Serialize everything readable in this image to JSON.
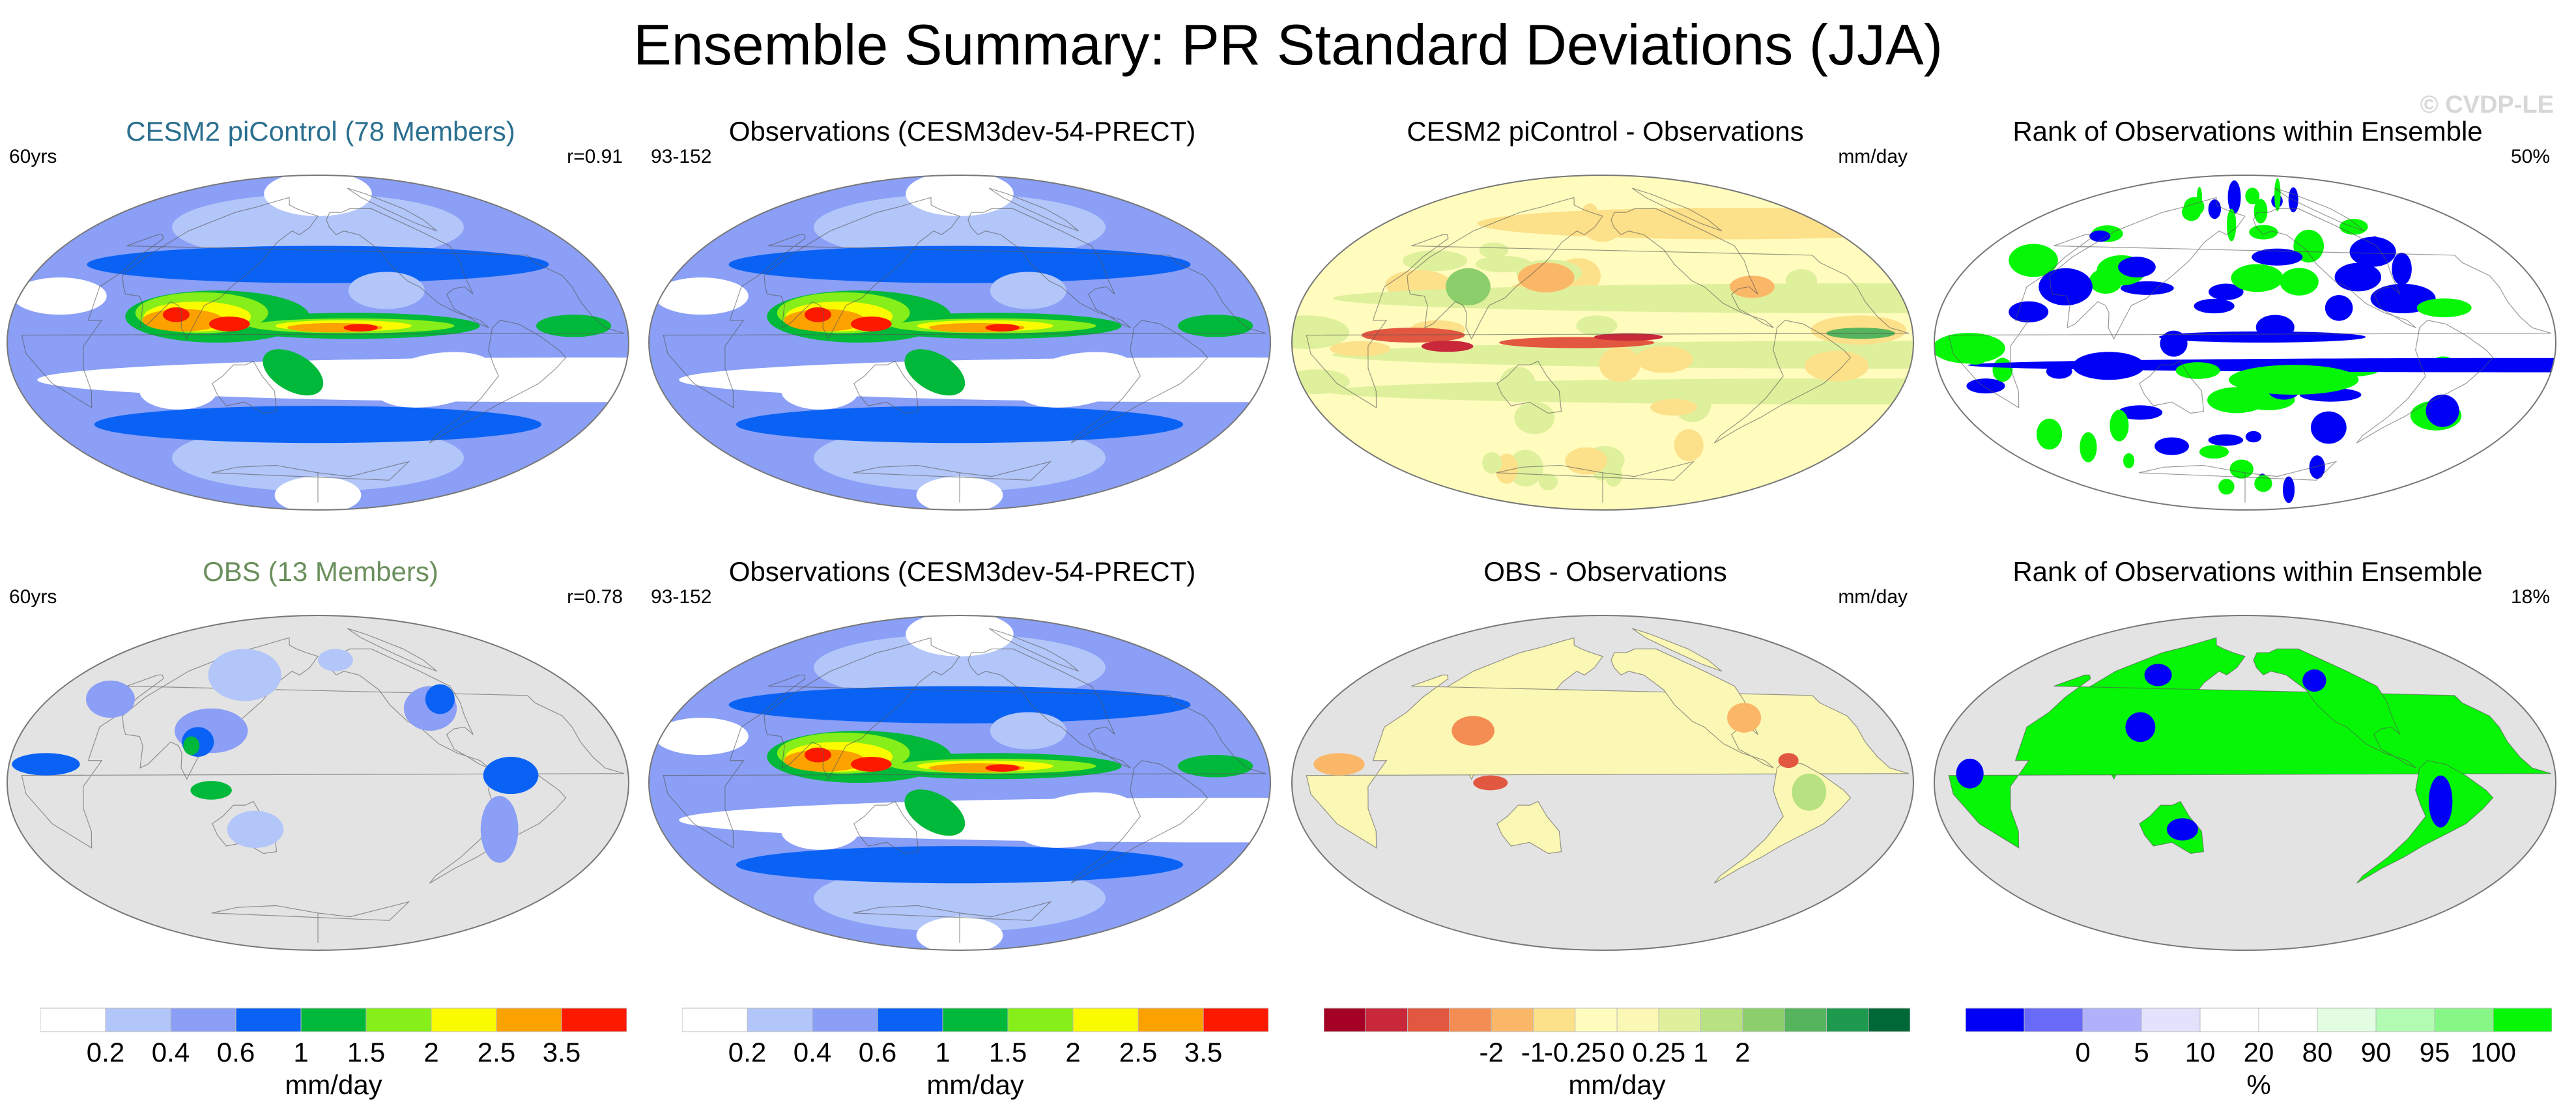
{
  "page": {
    "title": "Ensemble Summary: PR Standard Deviations (JJA)",
    "watermark": "© CVDP-LE"
  },
  "colors": {
    "ocean_gray": "#e3e3e3",
    "land_gray": "#e3e3e3",
    "title_blue": "#2a6f8f",
    "title_green": "#6a8f5c"
  },
  "panels": [
    {
      "id": "p1",
      "title": "CESM2 piControl (78 Members)",
      "title_color": "#2a6f8f",
      "left": "60yrs",
      "right": "r=0.91",
      "style": "pr"
    },
    {
      "id": "p2",
      "title": "Observations (CESM3dev-54-PRECT)",
      "title_color": "#000000",
      "left": "93-152",
      "right": "",
      "style": "pr"
    },
    {
      "id": "p3",
      "title": "CESM2 piControl - Observations",
      "title_color": "#000000",
      "left": "",
      "right": "mm/day",
      "style": "diff"
    },
    {
      "id": "p4",
      "title": "Rank of Observations within Ensemble",
      "title_color": "#000000",
      "left": "",
      "right": "50%",
      "style": "rank"
    },
    {
      "id": "p5",
      "title": "OBS (13 Members)",
      "title_color": "#6a8f5c",
      "left": "60yrs",
      "right": "r=0.78",
      "style": "pr_land"
    },
    {
      "id": "p6",
      "title": "Observations (CESM3dev-54-PRECT)",
      "title_color": "#000000",
      "left": "93-152",
      "right": "",
      "style": "pr"
    },
    {
      "id": "p7",
      "title": "OBS - Observations",
      "title_color": "#000000",
      "left": "",
      "right": "mm/day",
      "style": "diff_land"
    },
    {
      "id": "p8",
      "title": "Rank of Observations within Ensemble",
      "title_color": "#000000",
      "left": "",
      "right": "18%",
      "style": "rank_land"
    }
  ],
  "chart_data": [
    {
      "type": "heatmap",
      "name": "colorbar-precip",
      "unit_label": "mm/day",
      "tick_labels": [
        "0.2",
        "0.4",
        "0.6",
        "1",
        "1.5",
        "2",
        "2.5",
        "3.5"
      ],
      "colors": [
        "#ffffff",
        "#b3c6f9",
        "#8a9ff5",
        "#0a62f5",
        "#00b83a",
        "#86ee18",
        "#fbfb00",
        "#fba200",
        "#fb1a00"
      ]
    },
    {
      "type": "heatmap",
      "name": "colorbar-diff",
      "unit_label": "mm/day",
      "tick_labels": [
        "-2",
        "-1",
        "-0.25",
        "0",
        "0.25",
        "1",
        "2"
      ],
      "colors": [
        "#a50026",
        "#c8283a",
        "#e2573f",
        "#f48d53",
        "#fbb768",
        "#fde08a",
        "#fffcbd",
        "#fbf7b4",
        "#dff09c",
        "#b8e181",
        "#8cce6b",
        "#55b45d",
        "#1e9a4e",
        "#006837"
      ]
    },
    {
      "type": "heatmap",
      "name": "colorbar-rank",
      "unit_label": "%",
      "tick_labels": [
        "0",
        "5",
        "10",
        "20",
        "80",
        "90",
        "95",
        "100"
      ],
      "colors": [
        "#0000f7",
        "#6a6af9",
        "#b0b0fb",
        "#e2e2fd",
        "#ffffff",
        "#ffffff",
        "#e2fde2",
        "#b2fbb2",
        "#86f786",
        "#05f705"
      ]
    }
  ]
}
